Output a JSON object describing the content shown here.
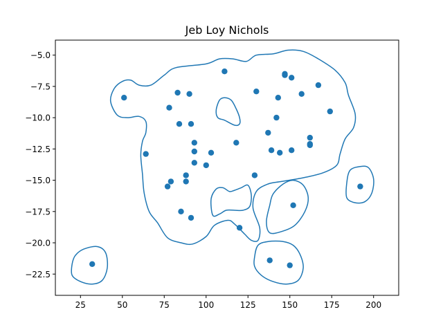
{
  "chart_data": {
    "type": "scatter",
    "title": "Jeb Loy Nichols",
    "xlabel": "",
    "ylabel": "",
    "xlim": [
      10,
      215
    ],
    "ylim": [
      -24.2,
      -3.8
    ],
    "xticks": [
      25,
      50,
      75,
      100,
      125,
      150,
      175,
      200
    ],
    "yticks": [
      -5.0,
      -7.5,
      -10.0,
      -12.5,
      -15.0,
      -17.5,
      -20.0,
      -22.5
    ],
    "xtick_labels": [
      "25",
      "50",
      "75",
      "100",
      "125",
      "150",
      "175",
      "200"
    ],
    "ytick_labels": [
      "−5.0",
      "−7.5",
      "−10.0",
      "−12.5",
      "−15.0",
      "−17.5",
      "−20.0",
      "−22.5"
    ],
    "grid": false,
    "marker_color": "#1f77b4",
    "contour_color": "#1f77b4",
    "points": [
      [
        51,
        -8.4
      ],
      [
        64,
        -12.9
      ],
      [
        78,
        -9.2
      ],
      [
        83,
        -8.0
      ],
      [
        84,
        -10.5
      ],
      [
        90,
        -8.1
      ],
      [
        91,
        -10.5
      ],
      [
        93,
        -12.0
      ],
      [
        93,
        -12.7
      ],
      [
        93,
        -13.6
      ],
      [
        100,
        -13.8
      ],
      [
        103,
        -12.8
      ],
      [
        88,
        -14.6
      ],
      [
        79,
        -15.1
      ],
      [
        77,
        -15.5
      ],
      [
        88,
        -15.1
      ],
      [
        85,
        -17.5
      ],
      [
        91,
        -18.0
      ],
      [
        111,
        -6.3
      ],
      [
        118,
        -12.0
      ],
      [
        120,
        -18.8
      ],
      [
        129,
        -14.6
      ],
      [
        130,
        -7.9
      ],
      [
        137,
        -11.2
      ],
      [
        139,
        -12.6
      ],
      [
        142,
        -10.0
      ],
      [
        143,
        -8.4
      ],
      [
        144,
        -12.8
      ],
      [
        147,
        -6.5
      ],
      [
        147,
        -6.6
      ],
      [
        151,
        -6.8
      ],
      [
        151,
        -12.6
      ],
      [
        157,
        -8.1
      ],
      [
        162,
        -11.6
      ],
      [
        162,
        -12.1
      ],
      [
        162,
        -12.2
      ],
      [
        167,
        -7.4
      ],
      [
        174,
        -9.5
      ],
      [
        152,
        -17.0
      ],
      [
        192,
        -15.5
      ],
      [
        32,
        -21.7
      ],
      [
        138,
        -21.4
      ],
      [
        150,
        -21.8
      ]
    ],
    "contours": [
      [
        [
          60,
          -7.4
        ],
        [
          67,
          -7.4
        ],
        [
          75,
          -6.6
        ],
        [
          82,
          -6.0
        ],
        [
          100,
          -5.7
        ],
        [
          108,
          -5.3
        ],
        [
          116,
          -5.3
        ],
        [
          124,
          -5.5
        ],
        [
          130,
          -5.0
        ],
        [
          140,
          -4.9
        ],
        [
          149,
          -4.6
        ],
        [
          158,
          -4.7
        ],
        [
          167,
          -5.3
        ],
        [
          177,
          -6.2
        ],
        [
          183,
          -7.2
        ],
        [
          185,
          -8.2
        ],
        [
          189,
          -9.7
        ],
        [
          188,
          -10.8
        ],
        [
          183,
          -11.7
        ],
        [
          180,
          -12.9
        ],
        [
          178,
          -13.8
        ],
        [
          170,
          -14.4
        ],
        [
          158,
          -14.8
        ],
        [
          145,
          -15.1
        ],
        [
          137,
          -15.3
        ],
        [
          130,
          -15.9
        ],
        [
          128,
          -17.2
        ],
        [
          132,
          -18.8
        ],
        [
          131,
          -19.8
        ],
        [
          127,
          -19.8
        ],
        [
          123,
          -19.3
        ],
        [
          117,
          -18.5
        ],
        [
          113,
          -18.2
        ],
        [
          105,
          -18.6
        ],
        [
          100,
          -19.5
        ],
        [
          92,
          -20.1
        ],
        [
          85,
          -20.0
        ],
        [
          77,
          -19.6
        ],
        [
          71,
          -18.4
        ],
        [
          66,
          -17.5
        ],
        [
          63,
          -16.0
        ],
        [
          62,
          -14.5
        ],
        [
          61,
          -13.0
        ],
        [
          62,
          -11.9
        ],
        [
          64,
          -11.2
        ],
        [
          64,
          -10.3
        ],
        [
          60,
          -9.9
        ],
        [
          53,
          -10.0
        ],
        [
          47,
          -9.8
        ],
        [
          43,
          -8.7
        ],
        [
          45,
          -7.7
        ],
        [
          50,
          -7.1
        ],
        [
          55,
          -7.0
        ],
        [
          60,
          -7.4
        ]
      ],
      [
        [
          106,
          -9.4
        ],
        [
          108,
          -8.6
        ],
        [
          111,
          -8.4
        ],
        [
          115,
          -8.6
        ],
        [
          118,
          -9.3
        ],
        [
          120,
          -10.0
        ],
        [
          120,
          -10.5
        ],
        [
          117,
          -10.6
        ],
        [
          111,
          -10.2
        ],
        [
          107,
          -10.0
        ],
        [
          106,
          -9.4
        ]
      ],
      [
        [
          104,
          -17.8
        ],
        [
          103,
          -16.5
        ],
        [
          106,
          -15.7
        ],
        [
          110,
          -15.6
        ],
        [
          114,
          -15.9
        ],
        [
          117,
          -15.8
        ],
        [
          121,
          -15.6
        ],
        [
          125,
          -15.4
        ],
        [
          127,
          -16.2
        ],
        [
          126,
          -17.1
        ],
        [
          122,
          -17.4
        ],
        [
          117,
          -17.4
        ],
        [
          112,
          -17.4
        ],
        [
          108,
          -17.7
        ],
        [
          104,
          -17.8
        ]
      ],
      [
        [
          146,
          -15.3
        ],
        [
          152,
          -15.0
        ],
        [
          158,
          -15.4
        ],
        [
          161,
          -16.4
        ],
        [
          159,
          -17.5
        ],
        [
          153,
          -18.6
        ],
        [
          145,
          -19.1
        ],
        [
          138,
          -19.2
        ],
        [
          136,
          -18.3
        ],
        [
          138,
          -17.0
        ],
        [
          140,
          -16.1
        ],
        [
          146,
          -15.3
        ]
      ],
      [
        [
          186,
          -14.2
        ],
        [
          192,
          -13.9
        ],
        [
          197,
          -14.0
        ],
        [
          200,
          -14.9
        ],
        [
          199,
          -16.0
        ],
        [
          195,
          -16.7
        ],
        [
          189,
          -16.8
        ],
        [
          184,
          -16.4
        ],
        [
          184,
          -15.2
        ],
        [
          186,
          -14.2
        ]
      ],
      [
        [
          129,
          -21.1
        ],
        [
          131,
          -20.2
        ],
        [
          137,
          -19.9
        ],
        [
          146,
          -19.9
        ],
        [
          152,
          -20.2
        ],
        [
          156,
          -20.9
        ],
        [
          158,
          -22.0
        ],
        [
          155,
          -23.0
        ],
        [
          148,
          -23.3
        ],
        [
          140,
          -23.1
        ],
        [
          133,
          -22.6
        ],
        [
          129,
          -21.9
        ],
        [
          129,
          -21.1
        ]
      ],
      [
        [
          22,
          -21.0
        ],
        [
          27,
          -20.5
        ],
        [
          35,
          -20.3
        ],
        [
          40,
          -20.8
        ],
        [
          41,
          -22.0
        ],
        [
          38,
          -23.0
        ],
        [
          32,
          -23.3
        ],
        [
          25,
          -23.1
        ],
        [
          20,
          -22.6
        ],
        [
          20,
          -21.7
        ],
        [
          22,
          -21.0
        ]
      ]
    ]
  }
}
